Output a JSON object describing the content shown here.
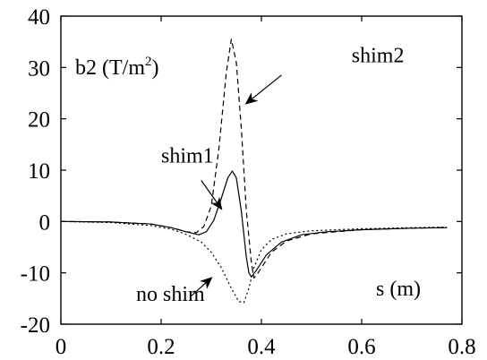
{
  "chart_data": {
    "type": "line",
    "title": "",
    "xlabel": "s (m)",
    "ylabel_parts": {
      "base": "b2 (T/m",
      "sup": "2",
      "close": ")"
    },
    "xlim": [
      0,
      0.8
    ],
    "ylim": [
      -20,
      40
    ],
    "xticks": [
      "0",
      "0.2",
      "0.4",
      "0.6",
      "0.8"
    ],
    "yticks": [
      "40",
      "30",
      "20",
      "10",
      "0",
      "-10",
      "-20"
    ],
    "grid": false,
    "legend": "none",
    "series": [
      {
        "name": "shim1",
        "style": "solid",
        "points": [
          [
            0,
            0
          ],
          [
            0.1,
            -0.1
          ],
          [
            0.18,
            -0.5
          ],
          [
            0.22,
            -1.2
          ],
          [
            0.25,
            -2.0
          ],
          [
            0.275,
            -2.6
          ],
          [
            0.29,
            -2.0
          ],
          [
            0.305,
            0.2
          ],
          [
            0.32,
            4.5
          ],
          [
            0.333,
            8.5
          ],
          [
            0.342,
            9.8
          ],
          [
            0.35,
            8.5
          ],
          [
            0.36,
            2.0
          ],
          [
            0.37,
            -7.0
          ],
          [
            0.375,
            -10.0
          ],
          [
            0.38,
            -10.8
          ],
          [
            0.39,
            -9.5
          ],
          [
            0.41,
            -6.5
          ],
          [
            0.44,
            -4.0
          ],
          [
            0.48,
            -2.6
          ],
          [
            0.53,
            -2.0
          ],
          [
            0.6,
            -1.6
          ],
          [
            0.7,
            -1.3
          ],
          [
            0.77,
            -1.2
          ]
        ]
      },
      {
        "name": "shim2",
        "style": "dashed",
        "points": [
          [
            0,
            0
          ],
          [
            0.1,
            -0.1
          ],
          [
            0.18,
            -0.5
          ],
          [
            0.22,
            -1.2
          ],
          [
            0.25,
            -2.0
          ],
          [
            0.27,
            -2.2
          ],
          [
            0.285,
            -1.0
          ],
          [
            0.3,
            3.0
          ],
          [
            0.315,
            14.0
          ],
          [
            0.33,
            29.0
          ],
          [
            0.34,
            35.5
          ],
          [
            0.35,
            31.0
          ],
          [
            0.36,
            18.0
          ],
          [
            0.37,
            2.0
          ],
          [
            0.38,
            -8.0
          ],
          [
            0.385,
            -11.0
          ],
          [
            0.39,
            -10.5
          ],
          [
            0.4,
            -9.0
          ],
          [
            0.42,
            -6.0
          ],
          [
            0.45,
            -3.8
          ],
          [
            0.5,
            -2.4
          ],
          [
            0.6,
            -1.6
          ],
          [
            0.7,
            -1.3
          ],
          [
            0.77,
            -1.2
          ]
        ]
      },
      {
        "name": "no shim",
        "style": "dotted",
        "points": [
          [
            0,
            0
          ],
          [
            0.1,
            -0.2
          ],
          [
            0.18,
            -0.8
          ],
          [
            0.22,
            -1.5
          ],
          [
            0.25,
            -2.5
          ],
          [
            0.28,
            -4.0
          ],
          [
            0.3,
            -6.0
          ],
          [
            0.32,
            -9.0
          ],
          [
            0.34,
            -13.0
          ],
          [
            0.355,
            -15.6
          ],
          [
            0.365,
            -15.8
          ],
          [
            0.375,
            -13.0
          ],
          [
            0.385,
            -9.0
          ],
          [
            0.4,
            -5.5
          ],
          [
            0.42,
            -3.5
          ],
          [
            0.45,
            -2.4
          ],
          [
            0.5,
            -1.8
          ],
          [
            0.6,
            -1.4
          ],
          [
            0.7,
            -1.2
          ],
          [
            0.77,
            -1.1
          ]
        ]
      }
    ],
    "annotations": [
      {
        "text": "shim2",
        "label_at": [
          0.58,
          31
        ],
        "arrow_from": [
          0.44,
          28.5
        ],
        "arrow_to": [
          0.37,
          23
        ]
      },
      {
        "text": "shim1",
        "label_at": [
          0.2,
          11.5
        ],
        "arrow_from": [
          0.28,
          8.0
        ],
        "arrow_to": [
          0.32,
          2.5
        ]
      },
      {
        "text": "no shim",
        "label_at": [
          0.15,
          -15.5
        ],
        "arrow_from": [
          0.26,
          -14.5
        ],
        "arrow_to": [
          0.3,
          -11.0
        ]
      }
    ]
  }
}
